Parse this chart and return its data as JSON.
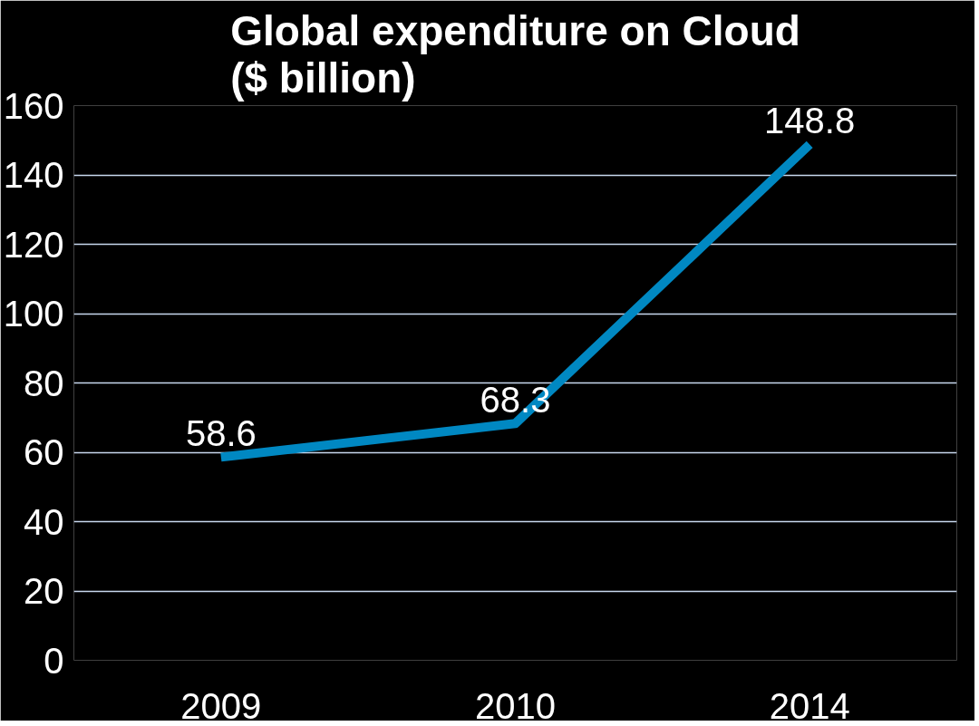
{
  "chart_data": {
    "type": "line",
    "title": "Global expenditure on Cloud\n($ billion)",
    "categories": [
      "2009",
      "2010",
      "2014"
    ],
    "series": [
      {
        "color": "#0088c2",
        "values": [
          58.6,
          68.3,
          148.8
        ]
      }
    ],
    "ylim": [
      0,
      160
    ],
    "yticks": [
      0,
      20,
      40,
      60,
      80,
      100,
      120,
      140,
      160
    ],
    "grid": "y",
    "data_labels": true
  }
}
